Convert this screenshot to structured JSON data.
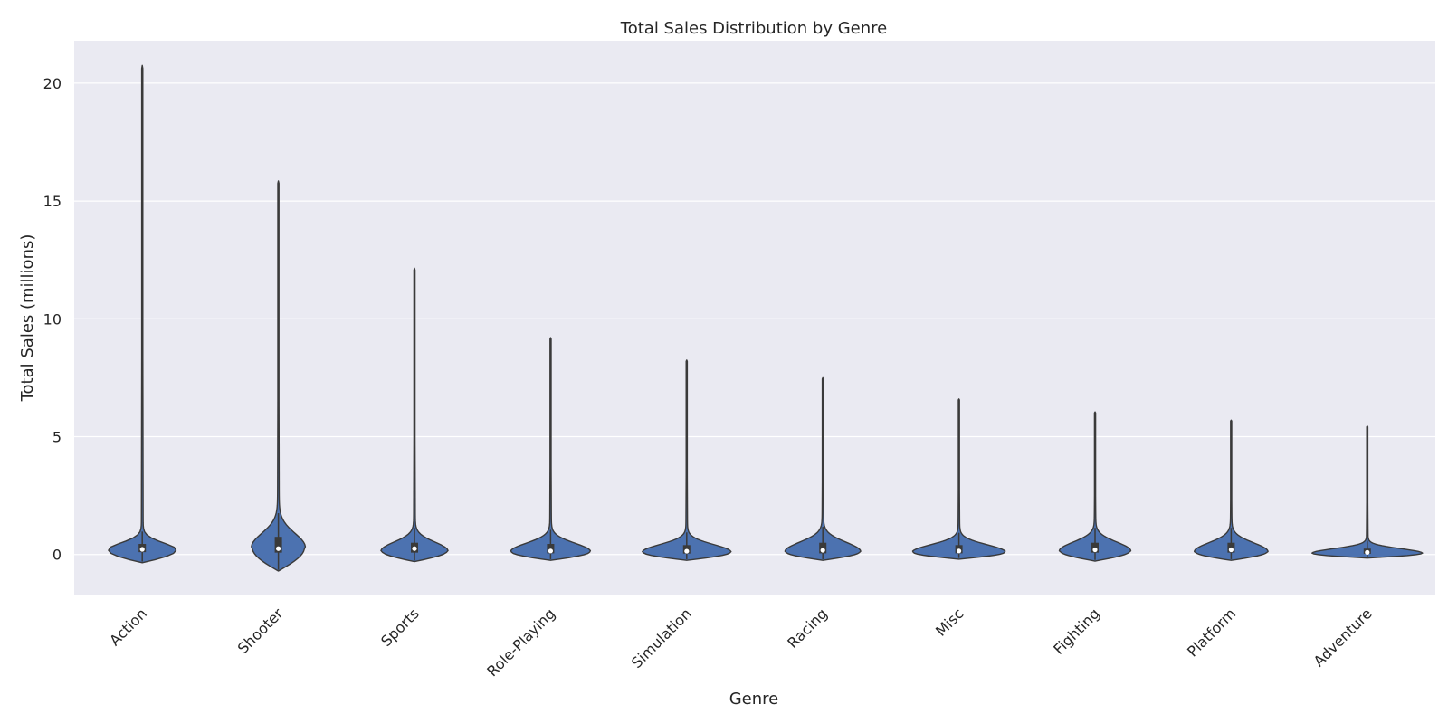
{
  "chart_data": {
    "type": "violin",
    "title": "Total Sales Distribution by Genre",
    "xlabel": "Genre",
    "ylabel": "Total Sales (millions)",
    "categories": [
      "Action",
      "Shooter",
      "Sports",
      "Role-Playing",
      "Simulation",
      "Racing",
      "Misc",
      "Fighting",
      "Platform",
      "Adventure"
    ],
    "ylim": [
      -1.7,
      21.8
    ],
    "yticks": [
      0,
      5,
      10,
      15,
      20
    ],
    "grid": true,
    "violins": [
      {
        "category": "Action",
        "kde_min": -0.35,
        "kde_max": 20.75,
        "q1": 0.1,
        "median": 0.22,
        "q3": 0.45,
        "peak": 0.18,
        "rel_width": 0.62
      },
      {
        "category": "Shooter",
        "kde_min": -0.7,
        "kde_max": 15.85,
        "q1": 0.08,
        "median": 0.25,
        "q3": 0.75,
        "peak": 0.3,
        "rel_width": 0.48
      },
      {
        "category": "Sports",
        "kde_min": -0.3,
        "kde_max": 12.15,
        "q1": 0.08,
        "median": 0.25,
        "q3": 0.5,
        "peak": 0.15,
        "rel_width": 0.6
      },
      {
        "category": "Role-Playing",
        "kde_min": -0.25,
        "kde_max": 9.2,
        "q1": 0.05,
        "median": 0.15,
        "q3": 0.45,
        "peak": 0.12,
        "rel_width": 0.72
      },
      {
        "category": "Simulation",
        "kde_min": -0.25,
        "kde_max": 8.25,
        "q1": 0.04,
        "median": 0.14,
        "q3": 0.4,
        "peak": 0.1,
        "rel_width": 0.8
      },
      {
        "category": "Racing",
        "kde_min": -0.25,
        "kde_max": 7.5,
        "q1": 0.05,
        "median": 0.18,
        "q3": 0.5,
        "peak": 0.12,
        "rel_width": 0.68
      },
      {
        "category": "Misc",
        "kde_min": -0.2,
        "kde_max": 6.6,
        "q1": 0.05,
        "median": 0.15,
        "q3": 0.4,
        "peak": 0.1,
        "rel_width": 0.84
      },
      {
        "category": "Fighting",
        "kde_min": -0.28,
        "kde_max": 6.05,
        "q1": 0.08,
        "median": 0.2,
        "q3": 0.5,
        "peak": 0.15,
        "rel_width": 0.64
      },
      {
        "category": "Platform",
        "kde_min": -0.25,
        "kde_max": 5.7,
        "q1": 0.08,
        "median": 0.2,
        "q3": 0.5,
        "peak": 0.12,
        "rel_width": 0.66
      },
      {
        "category": "Adventure",
        "kde_min": -0.15,
        "kde_max": 5.45,
        "q1": 0.03,
        "median": 0.09,
        "q3": 0.25,
        "peak": 0.05,
        "rel_width": 1.0
      }
    ],
    "colors": {
      "violin_fill": "#4c72b0",
      "violin_edge": "#3a3a3a",
      "plot_bg": "#eaeaf2",
      "grid": "#ffffff",
      "median_dot": "#ffffff",
      "box": "#3a3a3a"
    }
  }
}
